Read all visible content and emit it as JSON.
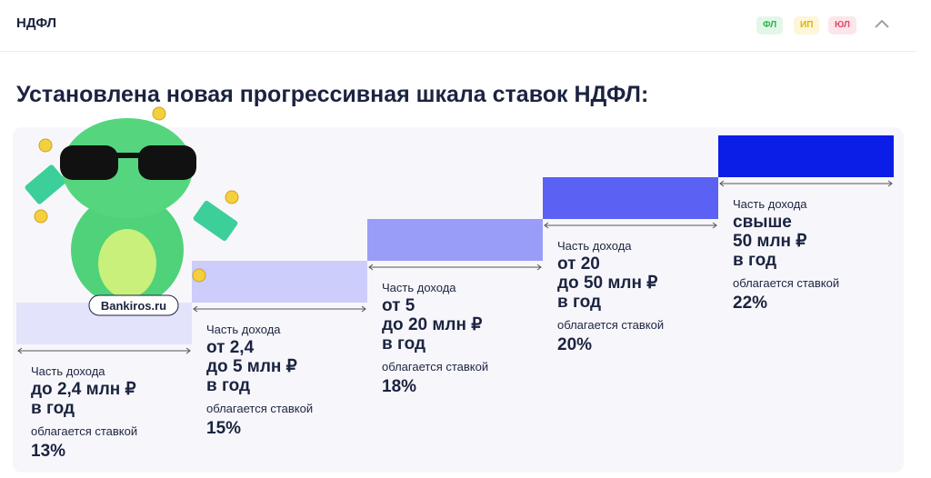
{
  "header": {
    "title": "НДФЛ",
    "badges": [
      "ФЛ",
      "ИП",
      "ЮЛ"
    ]
  },
  "heading": "Установлена новая прогрессивная шкала ставок НДФЛ:",
  "watermark": "Bankiros.ru",
  "steps": [
    {
      "caption": "Часть дохода",
      "amount_lines": [
        "до 2,4 млн ₽",
        "в год"
      ],
      "note": "облагается ставкой",
      "rate": "13%"
    },
    {
      "caption": "Часть дохода",
      "amount_lines": [
        "от 2,4",
        "до 5 млн ₽",
        "в год"
      ],
      "note": "облагается ставкой",
      "rate": "15%"
    },
    {
      "caption": "Часть дохода",
      "amount_lines": [
        "от 5",
        "до 20 млн ₽",
        "в год"
      ],
      "note": "облагается ставкой",
      "rate": "18%"
    },
    {
      "caption": "Часть дохода",
      "amount_lines": [
        "от 20",
        "до 50 млн ₽",
        "в год"
      ],
      "note": "облагается ставкой",
      "rate": "20%"
    },
    {
      "caption": "Часть дохода",
      "amount_lines": [
        "свыше",
        "50 млн ₽",
        "в год"
      ],
      "note": "облагается ставкой",
      "rate": "22%"
    }
  ]
}
